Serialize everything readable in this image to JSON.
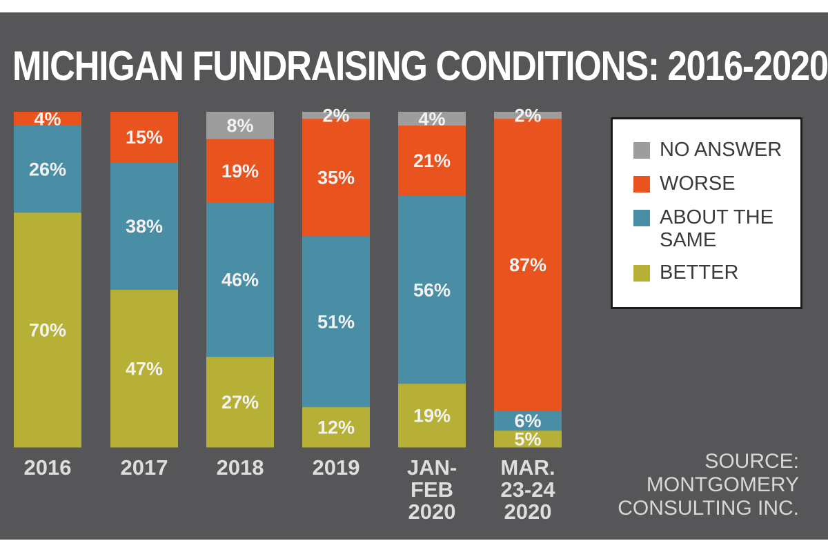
{
  "title": "MICHIGAN FUNDRAISING CONDITIONS: 2016-2020",
  "colors": {
    "no_answer": "#9c9d9c",
    "worse": "#e9541e",
    "same": "#4a8ea6",
    "better": "#b7b036",
    "background": "#565659",
    "label_text": "#f2f2f2",
    "axis_text": "#dedede"
  },
  "legend": {
    "items": [
      {
        "key": "no_answer",
        "label": "NO ANSWER",
        "color": "#9c9d9c"
      },
      {
        "key": "worse",
        "label": "WORSE",
        "color": "#e9541e"
      },
      {
        "key": "same",
        "label": "ABOUT THE SAME",
        "color": "#4a8ea6"
      },
      {
        "key": "better",
        "label": "BETTER",
        "color": "#b7b036"
      }
    ]
  },
  "source": {
    "lines": [
      "SOURCE:",
      "MONTGOMERY",
      "CONSULTING INC."
    ]
  },
  "chart_data": {
    "type": "bar",
    "stacked": true,
    "title": "MICHIGAN FUNDRAISING CONDITIONS: 2016-2020",
    "categories": [
      "2016",
      "2017",
      "2018",
      "2019",
      "JAN-FEB 2020",
      "MAR. 23-24 2020"
    ],
    "category_lines": [
      [
        "2016"
      ],
      [
        "2017"
      ],
      [
        "2018"
      ],
      [
        "2019"
      ],
      [
        "JAN-",
        "FEB",
        "2020"
      ],
      [
        "MAR.",
        "23-24",
        "2020"
      ]
    ],
    "series": [
      {
        "name": "BETTER",
        "key": "better",
        "values": [
          70,
          47,
          27,
          12,
          19,
          5
        ]
      },
      {
        "name": "ABOUT THE SAME",
        "key": "same",
        "values": [
          26,
          38,
          46,
          51,
          56,
          6
        ]
      },
      {
        "name": "WORSE",
        "key": "worse",
        "values": [
          4,
          15,
          19,
          35,
          21,
          87
        ]
      },
      {
        "name": "NO ANSWER",
        "key": "no_answer",
        "values": [
          0,
          0,
          8,
          2,
          4,
          2
        ]
      }
    ],
    "unit": "%",
    "ylim": [
      0,
      100
    ],
    "xlabel": "",
    "ylabel": "",
    "legend_position": "right",
    "source": "SOURCE: MONTGOMERY CONSULTING INC."
  }
}
